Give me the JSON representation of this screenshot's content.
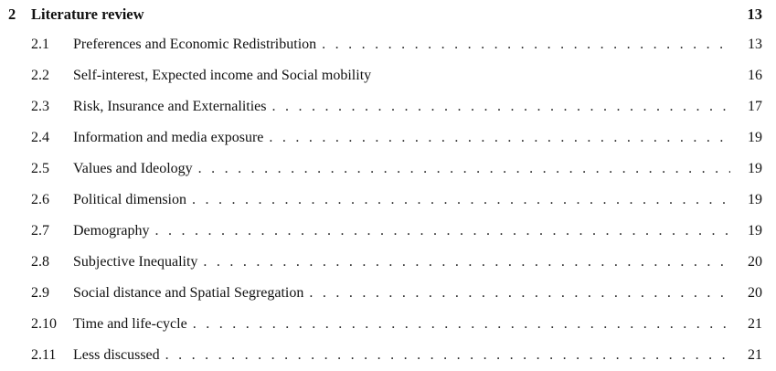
{
  "chapter": {
    "number": "2",
    "title": "Literature review",
    "page": "13"
  },
  "sections": [
    {
      "number": "2.1",
      "title": "Preferences and Economic Redistribution",
      "page": "13"
    },
    {
      "number": "2.2",
      "title": "Self-interest, Expected income and Social mobility",
      "page": "16"
    },
    {
      "number": "2.3",
      "title": "Risk, Insurance and Externalities",
      "page": "17"
    },
    {
      "number": "2.4",
      "title": "Information and media exposure",
      "page": "19"
    },
    {
      "number": "2.5",
      "title": "Values and Ideology",
      "page": "19"
    },
    {
      "number": "2.6",
      "title": "Political dimension",
      "page": "19"
    },
    {
      "number": "2.7",
      "title": "Demography",
      "page": "19"
    },
    {
      "number": "2.8",
      "title": "Subjective Inequality",
      "page": "20"
    },
    {
      "number": "2.9",
      "title": "Social distance and Spatial Segregation",
      "page": "20"
    },
    {
      "number": "2.10",
      "title": "Time and life-cycle",
      "page": "21"
    },
    {
      "number": "2.11",
      "title": "Less discussed",
      "page": "21"
    }
  ]
}
